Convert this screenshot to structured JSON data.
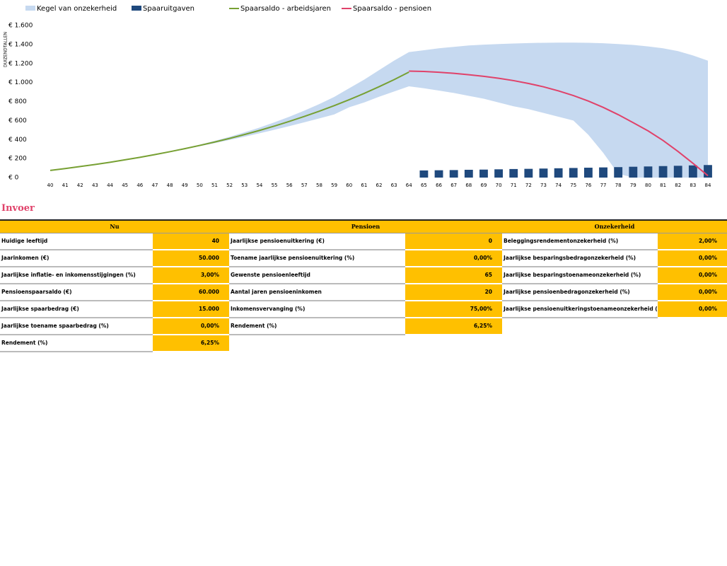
{
  "chart_data": {
    "type": "combo",
    "y_axis_label": "DUIZENDTALLEN",
    "categories": [
      "40",
      "41",
      "42",
      "43",
      "44",
      "45",
      "46",
      "47",
      "48",
      "49",
      "50",
      "51",
      "52",
      "53",
      "54",
      "55",
      "56",
      "57",
      "58",
      "59",
      "60",
      "61",
      "62",
      "63",
      "64",
      "65",
      "66",
      "67",
      "68",
      "69",
      "70",
      "71",
      "72",
      "73",
      "74",
      "75",
      "76",
      "77",
      "78",
      "79",
      "80",
      "81",
      "82",
      "83",
      "84"
    ],
    "ylim": [
      0,
      1600
    ],
    "yticks": [
      {
        "value": 0,
        "label": "€ 0"
      },
      {
        "value": 200,
        "label": "€ 200"
      },
      {
        "value": 400,
        "label": "€ 400"
      },
      {
        "value": 600,
        "label": "€ 600"
      },
      {
        "value": 800,
        "label": "€ 800"
      },
      {
        "value": 1000,
        "label": "€ 1.000"
      },
      {
        "value": 1200,
        "label": "€ 1.200"
      },
      {
        "value": 1400,
        "label": "€ 1.400"
      },
      {
        "value": 1600,
        "label": "€ 1.600"
      }
    ],
    "series": [
      {
        "name": "Kegel van onzekerheid",
        "type": "range-area",
        "color": "#c6d9f0",
        "low": [
          75,
          95,
          116,
          138,
          161,
          186,
          212,
          240,
          268,
          298,
          330,
          362,
          396,
          430,
          466,
          503,
          541,
          581,
          622,
          664,
          740,
          790,
          850,
          905,
          960,
          940,
          915,
          890,
          860,
          830,
          790,
          750,
          720,
          680,
          640,
          600,
          450,
          260,
          40,
          0,
          0,
          0,
          0,
          0,
          0
        ],
        "high": [
          75,
          95,
          116,
          138,
          161,
          187,
          214,
          243,
          275,
          309,
          346,
          386,
          429,
          476,
          526,
          581,
          640,
          704,
          773,
          848,
          940,
          1030,
          1130,
          1230,
          1320,
          1340,
          1360,
          1375,
          1390,
          1398,
          1405,
          1410,
          1415,
          1418,
          1420,
          1420,
          1418,
          1413,
          1405,
          1395,
          1380,
          1360,
          1330,
          1285,
          1230
        ]
      },
      {
        "name": "Spaaruitgaven",
        "type": "bar",
        "color": "#1f497d",
        "values": [
          null,
          null,
          null,
          null,
          null,
          null,
          null,
          null,
          null,
          null,
          null,
          null,
          null,
          null,
          null,
          null,
          null,
          null,
          null,
          null,
          null,
          null,
          null,
          null,
          null,
          75,
          77,
          79,
          82,
          84,
          87,
          90,
          92,
          95,
          98,
          101,
          104,
          107,
          110,
          114,
          117,
          121,
          124,
          128,
          132
        ]
      },
      {
        "name": "Spaarsaldo - arbeidsjaren",
        "type": "line",
        "color": "#77a033",
        "values": [
          75,
          95,
          116,
          138,
          161,
          187,
          213,
          242,
          272,
          304,
          338,
          374,
          412,
          453,
          496,
          542,
          591,
          643,
          698,
          757,
          819,
          885,
          956,
          1030,
          1110,
          null,
          null,
          null,
          null,
          null,
          null,
          null,
          null,
          null,
          null,
          null,
          null,
          null,
          null,
          null,
          null,
          null,
          null,
          null,
          null
        ]
      },
      {
        "name": "Spaarsaldo - pensioen",
        "type": "line",
        "color": "#e0426a",
        "values": [
          null,
          null,
          null,
          null,
          null,
          null,
          null,
          null,
          null,
          null,
          null,
          null,
          null,
          null,
          null,
          null,
          null,
          null,
          null,
          null,
          null,
          null,
          null,
          null,
          1120,
          1116,
          1108,
          1097,
          1082,
          1065,
          1045,
          1020,
          990,
          955,
          912,
          863,
          805,
          738,
          662,
          578,
          491,
          390,
          275,
          150,
          20
        ]
      }
    ]
  },
  "invoer": {
    "title": "Invoer",
    "sections": [
      {
        "header": "Nu",
        "rows": [
          [
            "Huidige leeftijd",
            "40"
          ],
          [
            "Jaarinkomen (€)",
            "50.000"
          ],
          [
            "Jaarlijkse inflatie- en inkomensstijgingen (%)",
            "3,00%"
          ],
          [
            "Pensioenspaarsaldo (€)",
            "60.000"
          ],
          [
            "Jaarlijkse spaarbedrag (€)",
            "15.000"
          ],
          [
            "Jaarlijkse toename spaarbedrag (%)",
            "0,00%"
          ],
          [
            "Rendement (%)",
            "6,25%"
          ]
        ]
      },
      {
        "header": "Pensioen",
        "rows": [
          [
            "Jaarlijkse pensioenuitkering (€)",
            "0"
          ],
          [
            "Toename jaarlijkse pensioenuitkering (%)",
            "0,00%"
          ],
          [
            "Gewenste pensioenleeftijd",
            "65"
          ],
          [
            "Aantal jaren pensioeninkomen",
            "20"
          ],
          [
            "Inkomensvervanging (%)",
            "75,00%"
          ],
          [
            "Rendement (%)",
            "6,25%"
          ]
        ]
      },
      {
        "header": "Onzekerheid",
        "rows": [
          [
            "Beleggingsrendementonzekerheid (%)",
            "2,00%"
          ],
          [
            "Jaarlijkse besparingsbedragonzekerheid (%)",
            "0,00%"
          ],
          [
            "Jaarlijkse besparingstoenameonzekerheid (%)",
            "0,00%"
          ],
          [
            "Jaarlijkse pensioenbedragonzekerheid (%)",
            "0,00%"
          ],
          [
            "Jaarlijkse pensioenuitkeringstoenameonzekerheid (%)",
            "0,00%"
          ]
        ]
      }
    ]
  }
}
